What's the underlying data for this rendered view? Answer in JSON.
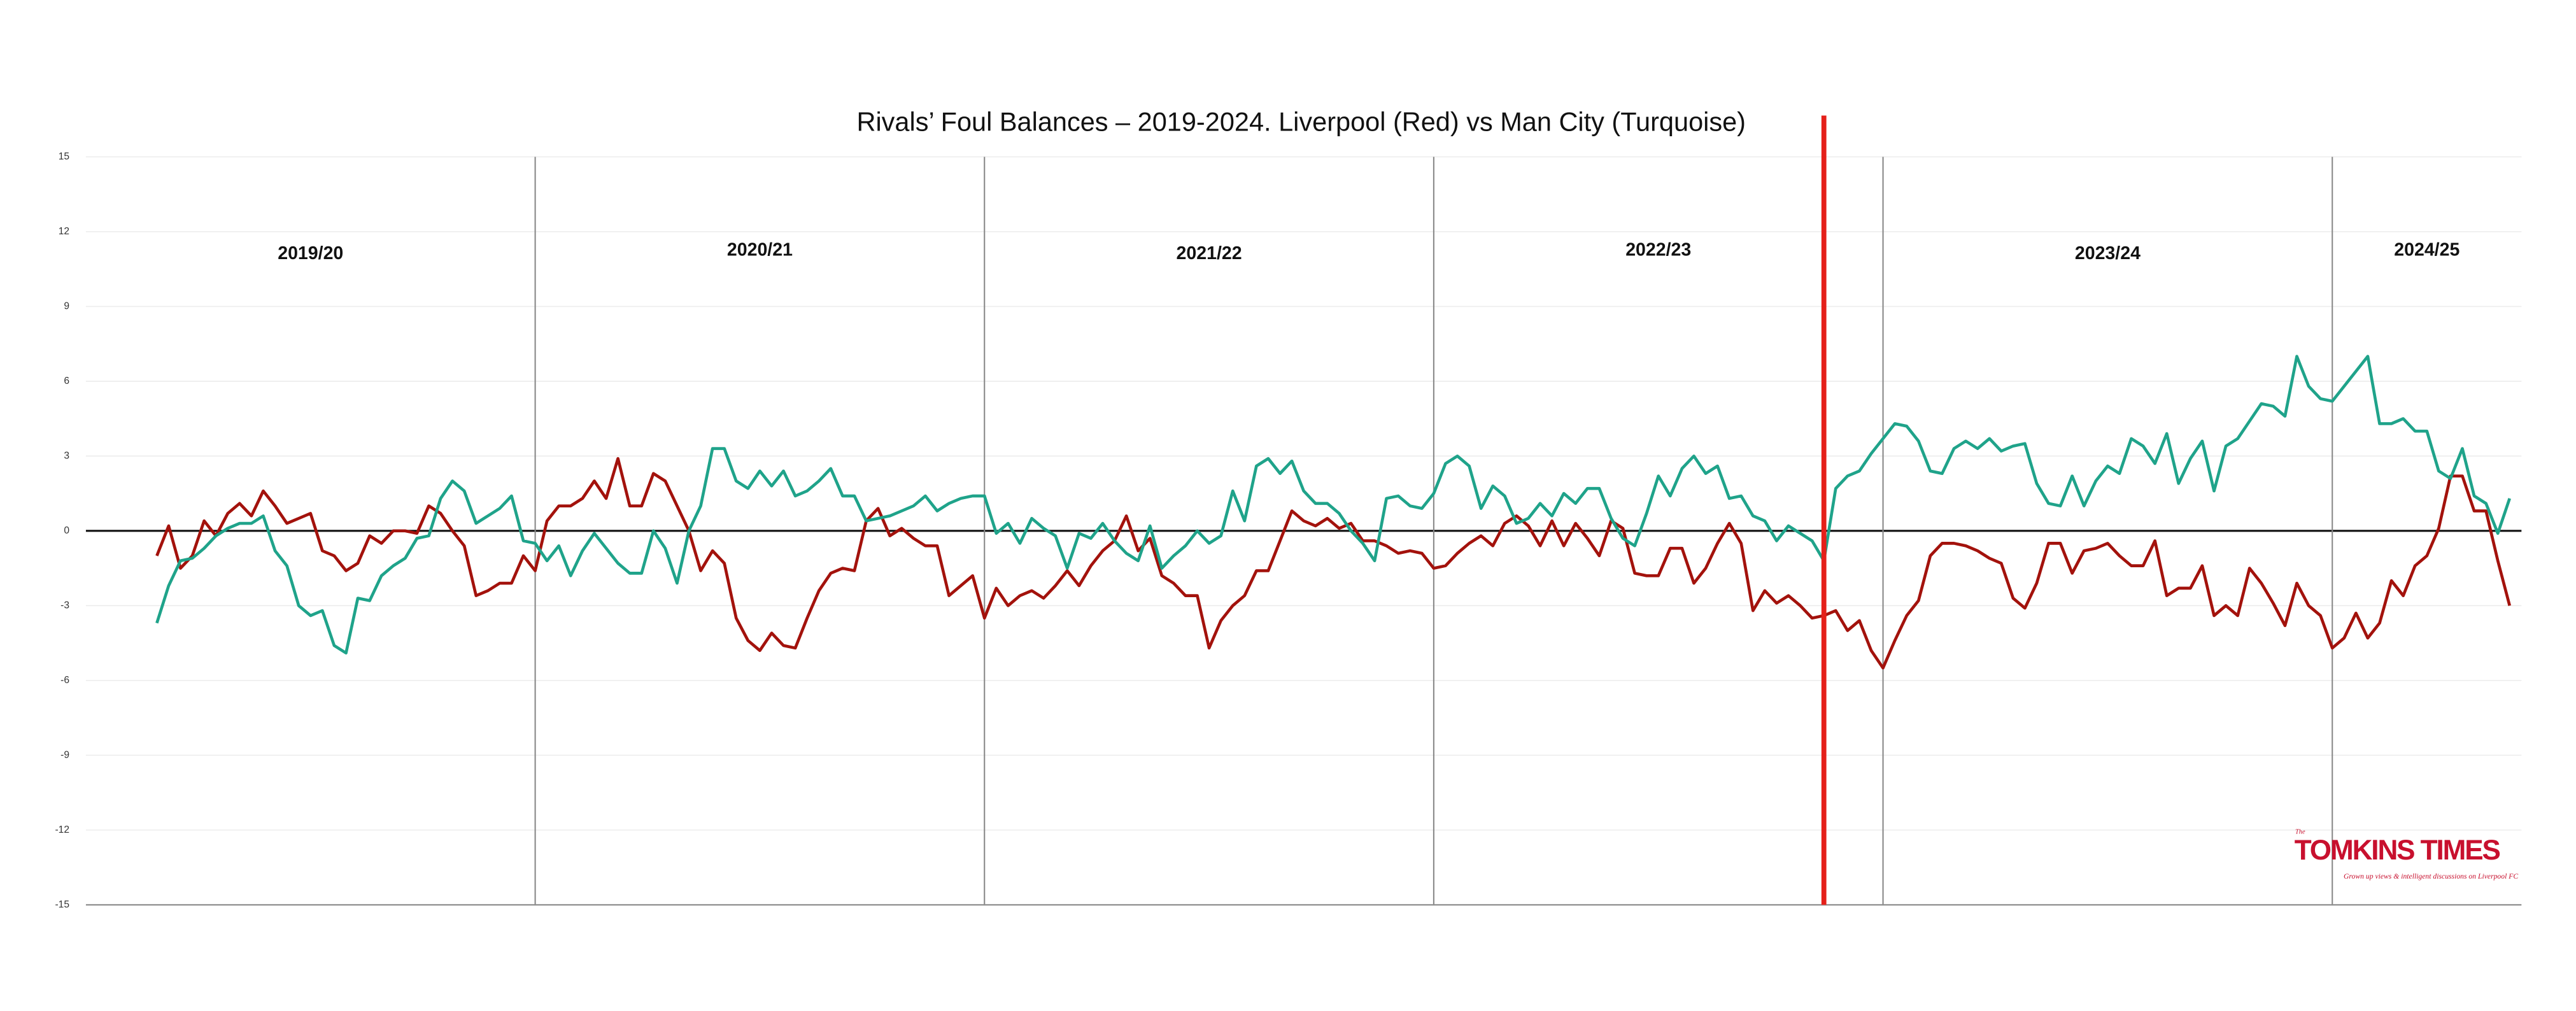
{
  "chart_data": {
    "type": "line",
    "title": "Rivals’ Foul Balances – 2019-2024. Liverpool (Red) vs Man City (Turquoise)",
    "xlim": [
      0,
      206
    ],
    "ylim": [
      -15,
      15
    ],
    "yticks": [
      -15,
      -12,
      -9,
      -6,
      -3,
      0,
      3,
      6,
      9,
      12,
      15
    ],
    "grid": true,
    "hline": 0,
    "dividers": [
      38,
      76,
      114,
      152,
      190
    ],
    "highlight_x": 147,
    "highlight_color": "#e5201a",
    "seasons": [
      "2019/20",
      "2020/21",
      "2021/22",
      "2022/23",
      "2023/24",
      "2024/25"
    ],
    "series": [
      {
        "name": "Liverpool",
        "color": "#a3120c",
        "values": [
          null,
          null,
          null,
          null,
          null,
          null,
          -1.0,
          0.2,
          -1.5,
          -1.0,
          0.4,
          -0.2,
          0.7,
          1.1,
          0.6,
          1.6,
          1.0,
          0.3,
          0.5,
          0.7,
          -0.8,
          -1.0,
          -1.6,
          -1.3,
          -0.2,
          -0.5,
          0,
          0,
          -0.1,
          1.0,
          0.7,
          0,
          -0.6,
          -2.6,
          -2.4,
          -2.1,
          -2.1,
          -1.0,
          -1.6,
          0.4,
          1.0,
          1.0,
          1.3,
          2.0,
          1.3,
          2.9,
          1.0,
          1.0,
          2.3,
          2.0,
          1.0,
          0.0,
          -1.6,
          -0.8,
          -1.3,
          -3.5,
          -4.4,
          -4.8,
          -4.1,
          -4.6,
          -4.7,
          -3.5,
          -2.4,
          -1.7,
          -1.5,
          -1.6,
          0.4,
          0.9,
          -0.2,
          0.1,
          -0.3,
          -0.6,
          -0.6,
          -2.6,
          -2.2,
          -1.8,
          -3.5,
          -2.3,
          -3.0,
          -2.6,
          -2.4,
          -2.7,
          -2.2,
          -1.6,
          -2.2,
          -1.4,
          -0.8,
          -0.4,
          0.6,
          -0.8,
          -0.3,
          -1.8,
          -2.1,
          -2.6,
          -2.6,
          -4.7,
          -3.6,
          -3.0,
          -2.6,
          -1.6,
          -1.6,
          -0.4,
          0.8,
          0.4,
          0.2,
          0.5,
          0.1,
          0.3,
          -0.4,
          -0.4,
          -0.6,
          -0.9,
          -0.8,
          -0.9,
          -1.5,
          -1.4,
          -0.9,
          -0.5,
          -0.2,
          -0.6,
          0.3,
          0.6,
          0.2,
          -0.6,
          0.4,
          -0.6,
          0.3,
          -0.3,
          -1.0,
          0.4,
          0.1,
          -1.7,
          -1.8,
          -1.8,
          -0.7,
          -0.7,
          -2.1,
          -1.5,
          -0.5,
          0.3,
          -0.5,
          -3.2,
          -2.4,
          -2.9,
          -2.6,
          -3.0,
          -3.5,
          -3.4,
          -3.2,
          -4.0,
          -3.6,
          -4.8,
          -5.5,
          -4.4,
          -3.4,
          -2.8,
          -1.0,
          -0.5,
          -0.5,
          -0.6,
          -0.8,
          -1.1,
          -1.3,
          -2.7,
          -3.1,
          -2.1,
          -0.5,
          -0.5,
          -1.7,
          -0.8,
          -0.7,
          -0.5,
          -1.0,
          -1.4,
          -1.4,
          -0.4,
          -2.6,
          -2.3,
          -2.3,
          -1.4,
          -3.4,
          -3.0,
          -3.4,
          -1.5,
          -2.1,
          -2.9,
          -3.8,
          -2.1,
          -3.0,
          -3.4,
          -4.7,
          -4.3,
          -3.3,
          -4.3,
          -3.7,
          -2.0,
          -2.6,
          -1.4,
          -1.0,
          0.1,
          2.2,
          2.2,
          0.8,
          0.8,
          -1.2,
          -3.0
        ]
      },
      {
        "name": "Man City",
        "color": "#1fa38a",
        "values": [
          null,
          null,
          null,
          null,
          null,
          null,
          -3.7,
          -2.2,
          -1.2,
          -1.1,
          -0.7,
          -0.2,
          0.1,
          0.3,
          0.3,
          0.6,
          -0.8,
          -1.4,
          -3.0,
          -3.4,
          -3.2,
          -4.6,
          -4.9,
          -2.7,
          -2.8,
          -1.8,
          -1.4,
          -1.1,
          -0.3,
          -0.2,
          1.3,
          2.0,
          1.6,
          0.3,
          0.6,
          0.9,
          1.4,
          -0.4,
          -0.5,
          -1.2,
          -0.6,
          -1.8,
          -0.8,
          -0.1,
          -0.7,
          -1.3,
          -1.7,
          -1.7,
          0.0,
          -0.7,
          -2.1,
          0.0,
          1.0,
          3.3,
          3.3,
          2.0,
          1.7,
          2.4,
          1.8,
          2.4,
          1.4,
          1.6,
          2.0,
          2.5,
          1.4,
          1.4,
          0.4,
          0.5,
          0.6,
          0.8,
          1.0,
          1.4,
          0.8,
          1.1,
          1.3,
          1.4,
          1.4,
          -0.1,
          0.3,
          -0.5,
          0.5,
          0.1,
          -0.2,
          -1.5,
          -0.1,
          -0.3,
          0.3,
          -0.4,
          -0.9,
          -1.2,
          0.2,
          -1.5,
          -1.0,
          -0.6,
          0.0,
          -0.5,
          -0.2,
          1.6,
          0.4,
          2.6,
          2.9,
          2.3,
          2.8,
          1.6,
          1.1,
          1.1,
          0.7,
          0.0,
          -0.5,
          -1.2,
          1.3,
          1.4,
          1.0,
          0.9,
          1.5,
          2.7,
          3.0,
          2.6,
          0.9,
          1.8,
          1.4,
          0.3,
          0.5,
          1.1,
          0.6,
          1.5,
          1.1,
          1.7,
          1.7,
          0.5,
          -0.3,
          -0.6,
          0.7,
          2.2,
          1.4,
          2.5,
          3.0,
          2.3,
          2.6,
          1.3,
          1.4,
          0.6,
          0.4,
          -0.4,
          0.2,
          -0.1,
          -0.4,
          -1.2,
          1.7,
          2.2,
          2.4,
          3.1,
          3.7,
          4.3,
          4.2,
          3.6,
          2.4,
          2.3,
          3.3,
          3.6,
          3.3,
          3.7,
          3.2,
          3.4,
          3.5,
          1.9,
          1.1,
          1.0,
          2.2,
          1.0,
          2.0,
          2.6,
          2.3,
          3.7,
          3.4,
          2.7,
          3.9,
          1.9,
          2.9,
          3.6,
          1.6,
          3.4,
          3.7,
          4.4,
          5.1,
          5.0,
          4.6,
          7.0,
          5.8,
          5.3,
          5.2,
          5.8,
          6.4,
          7.0,
          4.3,
          4.3,
          4.5,
          4.0,
          4.0,
          2.4,
          2.1,
          3.3,
          1.4,
          1.1,
          -0.1,
          1.3
        ]
      }
    ],
    "logo": {
      "small": "The",
      "name": "TOMKINS TIMES",
      "tagline": "Grown up views & intelligent discussions on Liverpool FC"
    }
  }
}
